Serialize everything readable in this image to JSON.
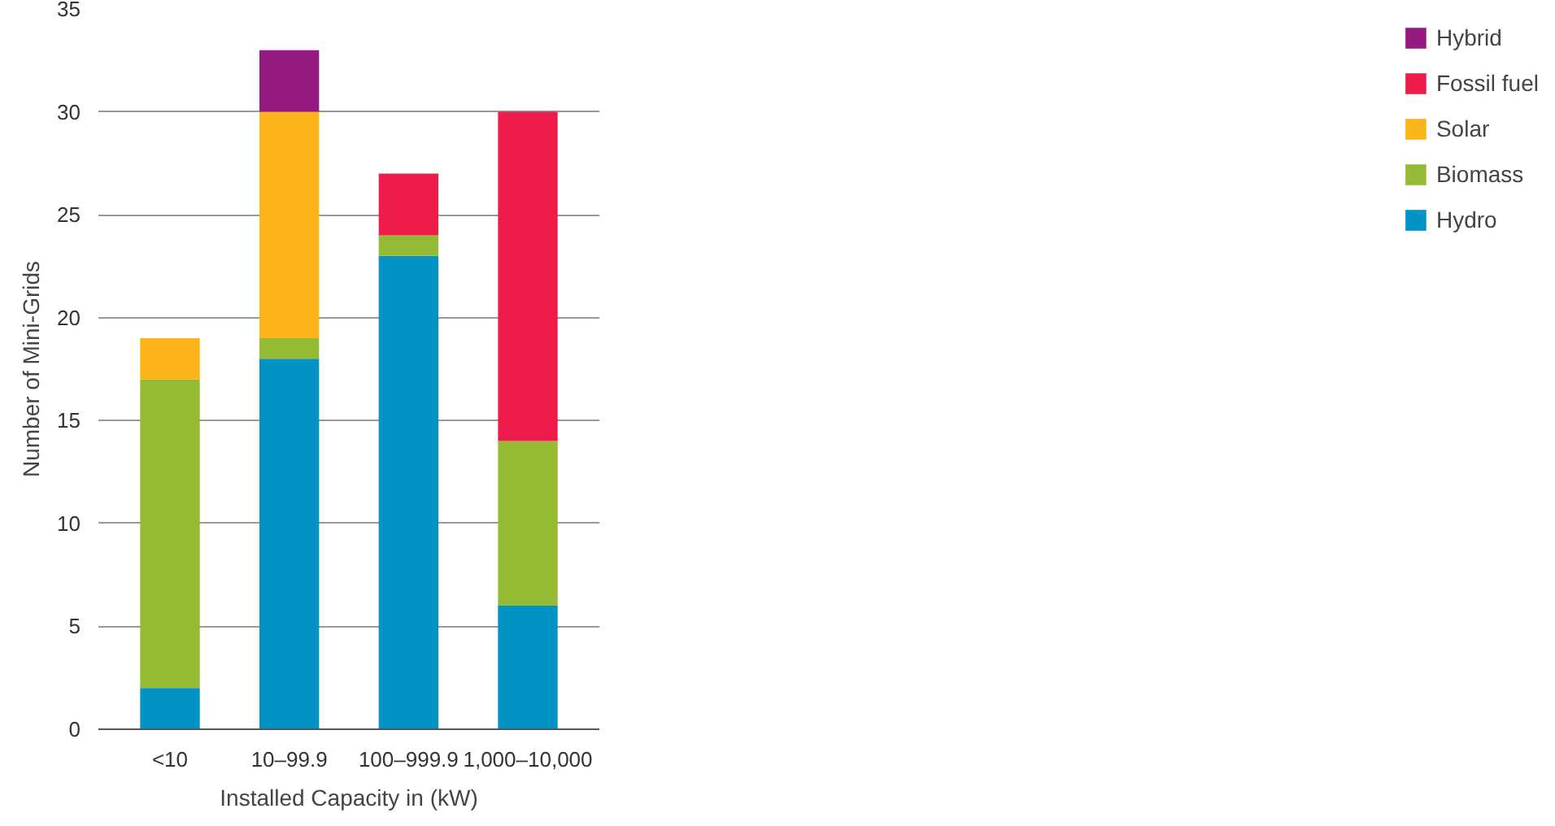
{
  "chart_data": {
    "type": "bar",
    "stacked": true,
    "xlabel": "Installed Capacity in (kW)",
    "ylabel": "Number of Mini-Grids",
    "categories": [
      "<10",
      "10–99.9",
      "100–999.9",
      "1,000–10,000"
    ],
    "series": [
      {
        "name": "Hydro",
        "color": "#0093c4",
        "values": [
          2,
          18,
          23,
          6
        ]
      },
      {
        "name": "Biomass",
        "color": "#95bb35",
        "values": [
          15,
          1,
          1,
          8
        ]
      },
      {
        "name": "Solar",
        "color": "#fbb419",
        "values": [
          2,
          11,
          0,
          0
        ]
      },
      {
        "name": "Fossil fuel",
        "color": "#ee1c4b",
        "values": [
          0,
          0,
          3,
          16
        ]
      },
      {
        "name": "Hybrid",
        "color": "#951b81",
        "values": [
          0,
          3,
          0,
          0
        ]
      }
    ],
    "ylim": [
      0,
      35
    ],
    "yticks": [
      0,
      5,
      10,
      15,
      20,
      25,
      30,
      35
    ],
    "grid": "y",
    "legend": "right"
  }
}
